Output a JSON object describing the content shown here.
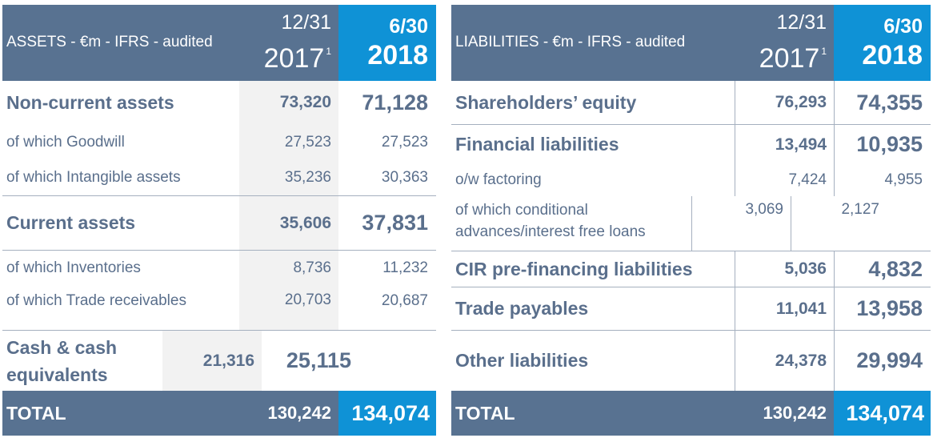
{
  "assets": {
    "header": {
      "title": "ASSETS - €m - IFRS - audited",
      "col1_date": "12/31",
      "col1_year": "2017",
      "col1_note": "1",
      "col2_date": "6/30",
      "col2_year": "2018"
    },
    "rows": [
      {
        "label": "Non-current assets",
        "v2017": "73,320",
        "v2018": "71,128"
      },
      {
        "label": "of which Goodwill",
        "v2017": "27,523",
        "v2018": "27,523"
      },
      {
        "label": "of which Intangible assets",
        "v2017": "35,236",
        "v2018": "30,363"
      },
      {
        "label": "Current assets",
        "v2017": "35,606",
        "v2018": "37,831"
      },
      {
        "label": "of which Inventories",
        "v2017": "8,736",
        "v2018": "11,232"
      },
      {
        "label": "of which Trade receivables",
        "v2017": "20,703",
        "v2018": "20,687"
      },
      {
        "label": "Cash & cash equivalents",
        "v2017": "21,316",
        "v2018": "25,115"
      }
    ],
    "total": {
      "label": "TOTAL",
      "v2017": "130,242",
      "v2018": "134,074"
    }
  },
  "liabilities": {
    "header": {
      "title": "LIABILITIES - €m - IFRS - audited",
      "col1_date": "12/31",
      "col1_year": "2017",
      "col1_note": "1",
      "col2_date": "6/30",
      "col2_year": "2018"
    },
    "rows": [
      {
        "label": "Shareholders’ equity",
        "v2017": "76,293",
        "v2018": "74,355"
      },
      {
        "label": "Financial liabilities",
        "v2017": "13,494",
        "v2018": "10,935"
      },
      {
        "label": "o/w factoring",
        "v2017": "7,424",
        "v2018": "4,955"
      },
      {
        "label": "of which conditional advances/interest free loans",
        "v2017": "3,069",
        "v2018": "2,127"
      },
      {
        "label": "CIR pre-financing liabilities",
        "v2017": "5,036",
        "v2018": "4,832"
      },
      {
        "label": "Trade payables",
        "v2017": "11,041",
        "v2018": "13,958"
      },
      {
        "label": "Other liabilities",
        "v2017": "24,378",
        "v2018": "29,994"
      }
    ],
    "total": {
      "label": "TOTAL",
      "v2017": "130,242",
      "v2018": "134,074"
    }
  }
}
